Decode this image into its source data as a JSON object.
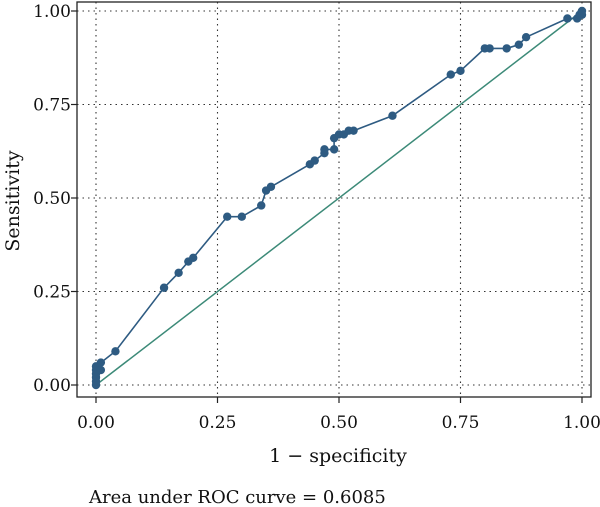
{
  "chart_data": {
    "type": "line",
    "xlabel": "1 − specificity",
    "ylabel": "Sensitivity",
    "xlim": [
      0,
      1
    ],
    "ylim": [
      0,
      1
    ],
    "xticks": [
      0,
      0.25,
      0.5,
      0.75,
      1
    ],
    "yticks": [
      0,
      0.25,
      0.5,
      0.75,
      1
    ],
    "xtick_labels": [
      "0.00",
      "0.25",
      "0.50",
      "0.75",
      "1.00"
    ],
    "ytick_labels": [
      "0.00",
      "0.25",
      "0.50",
      "0.75",
      "1.00"
    ],
    "grid": true,
    "grid_style": "dotted",
    "colors": {
      "roc": "#2e5b82",
      "reference": "#3c8a78"
    },
    "series": [
      {
        "type": "line-markers",
        "x": [
          0,
          0,
          0,
          0,
          0,
          0,
          0.01,
          0.01,
          0.04,
          0.14,
          0.17,
          0.19,
          0.2,
          0.27,
          0.3,
          0.34,
          0.35,
          0.36,
          0.44,
          0.45,
          0.47,
          0.47,
          0.49,
          0.49,
          0.5,
          0.51,
          0.52,
          0.53,
          0.61,
          0.73,
          0.75,
          0.8,
          0.81,
          0.845,
          0.87,
          0.885,
          0.97,
          0.99,
          0.995,
          1,
          1
        ],
        "y": [
          0,
          0.01,
          0.02,
          0.03,
          0.04,
          0.05,
          0.04,
          0.06,
          0.09,
          0.26,
          0.3,
          0.33,
          0.34,
          0.45,
          0.45,
          0.48,
          0.52,
          0.53,
          0.59,
          0.6,
          0.62,
          0.63,
          0.63,
          0.66,
          0.67,
          0.67,
          0.68,
          0.68,
          0.72,
          0.83,
          0.84,
          0.9,
          0.9,
          0.9,
          0.91,
          0.93,
          0.98,
          0.98,
          0.99,
          0.99,
          1
        ]
      },
      {
        "type": "reference-line",
        "x": [
          0,
          1
        ],
        "y": [
          0,
          1
        ]
      }
    ],
    "annotation": "Area under ROC curve = 0.6085"
  }
}
